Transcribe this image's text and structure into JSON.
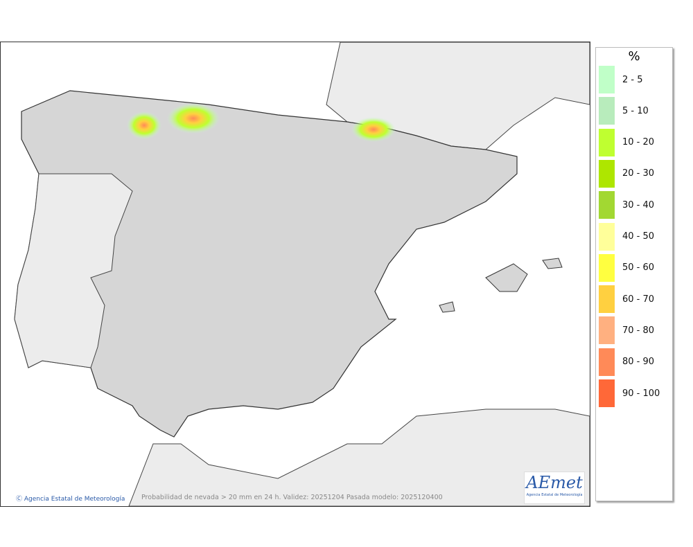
{
  "map": {
    "caption": "Probabilidad de nevada > 20 mm en 24 h. Validez: 20251204 Pasada modelo: 2025120400",
    "credit": "Agencia Estatal de Meteorología",
    "logo_text": "AEmet",
    "logo_subtitle": "Agencia Estatal de Meteorología",
    "colors": {
      "land": "#d6d6d6",
      "sea": "#ffffff",
      "other_land": "#ececec",
      "border": "#333333"
    }
  },
  "legend": {
    "unit": "%",
    "items": [
      {
        "label": "2 - 5",
        "color": "#c0ffc8"
      },
      {
        "label": "5 - 10",
        "color": "#b8ecbc"
      },
      {
        "label": "10 - 20",
        "color": "#bfff30"
      },
      {
        "label": "20 - 30",
        "color": "#aee600"
      },
      {
        "label": "30 - 40",
        "color": "#a2d832"
      },
      {
        "label": "40 - 50",
        "color": "#ffff9a"
      },
      {
        "label": "50 - 60",
        "color": "#ffff40"
      },
      {
        "label": "60 - 70",
        "color": "#ffd040"
      },
      {
        "label": "70 - 80",
        "color": "#ffb080"
      },
      {
        "label": "80 - 90",
        "color": "#ff8a58"
      },
      {
        "label": "90 - 100",
        "color": "#ff6838"
      }
    ]
  }
}
